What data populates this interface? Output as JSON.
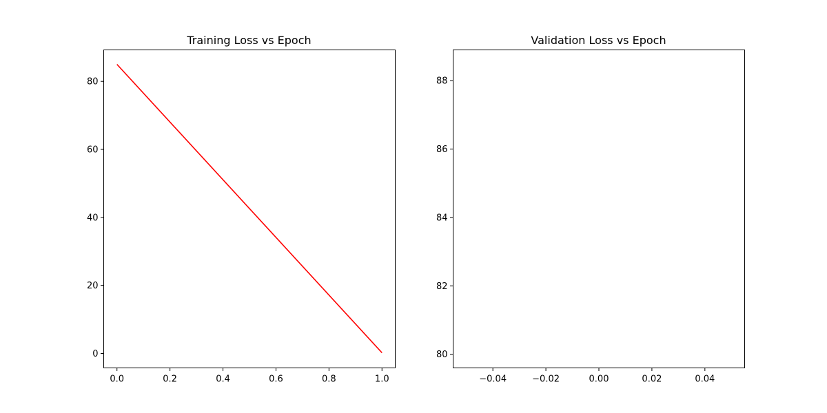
{
  "chart_data": [
    {
      "type": "line",
      "title": "Training Loss vs Epoch",
      "xlabel": "",
      "ylabel": "",
      "xlim": [
        -0.05,
        1.05
      ],
      "ylim": [
        -4.25,
        89.25
      ],
      "xticks": [
        0.0,
        0.2,
        0.4,
        0.6,
        0.8,
        1.0
      ],
      "xtick_labels": [
        "0.0",
        "0.2",
        "0.4",
        "0.6",
        "0.8",
        "1.0"
      ],
      "yticks": [
        0,
        20,
        40,
        60,
        80
      ],
      "ytick_labels": [
        "0",
        "20",
        "40",
        "60",
        "80"
      ],
      "grid": false,
      "series": [
        {
          "color": "#ff0000",
          "x": [
            0,
            1
          ],
          "y": [
            85,
            0.2
          ]
        }
      ]
    },
    {
      "type": "line",
      "title": "Validation Loss vs Epoch",
      "xlabel": "",
      "ylabel": "",
      "xlim": [
        -0.055,
        0.055
      ],
      "ylim": [
        79.6,
        88.9
      ],
      "xticks": [
        -0.04,
        -0.02,
        0.0,
        0.02,
        0.04
      ],
      "xtick_labels": [
        "−0.04",
        "−0.02",
        "0.00",
        "0.02",
        "0.04"
      ],
      "yticks": [
        80,
        82,
        84,
        86,
        88
      ],
      "ytick_labels": [
        "80",
        "82",
        "84",
        "86",
        "88"
      ],
      "grid": false,
      "series": []
    }
  ]
}
